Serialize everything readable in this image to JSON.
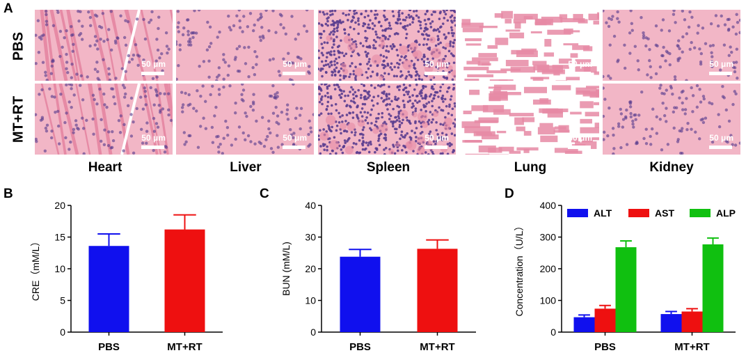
{
  "histology": {
    "panel_letter": "A",
    "rows": [
      "PBS",
      "MT+RT"
    ],
    "organs": [
      "Heart",
      "Liver",
      "Spleen",
      "Lung",
      "Kidney"
    ],
    "scale_bar": "50 μm",
    "stain_colors": {
      "background": "#f2b6c6",
      "tissue": "#e68aa5",
      "nuclei": "#5a3d8f",
      "blank": "#ffffff"
    }
  },
  "chart_data": [
    {
      "panel_letter": "B",
      "type": "bar",
      "categories": [
        "PBS",
        "MT+RT"
      ],
      "values": [
        13.6,
        16.2
      ],
      "errors": [
        1.9,
        2.3
      ],
      "colors": [
        "#1010ee",
        "#ee1010"
      ],
      "ylabel": "CRE（mM/L）",
      "xlabel": "",
      "ylim": [
        0,
        20
      ],
      "yticks": [
        0,
        5,
        10,
        15,
        20
      ],
      "grid": false
    },
    {
      "panel_letter": "C",
      "type": "bar",
      "categories": [
        "PBS",
        "MT+RT"
      ],
      "values": [
        23.8,
        26.3
      ],
      "errors": [
        2.3,
        2.8
      ],
      "colors": [
        "#1010ee",
        "#ee1010"
      ],
      "ylabel": "BUN (mM/L)",
      "xlabel": "",
      "ylim": [
        0,
        40
      ],
      "yticks": [
        0,
        10,
        20,
        30,
        40
      ],
      "grid": false
    },
    {
      "panel_letter": "D",
      "type": "bar",
      "categories": [
        "PBS",
        "MT+RT"
      ],
      "series": [
        {
          "name": "ALT",
          "values": [
            47,
            57
          ],
          "errors": [
            7,
            8
          ],
          "color": "#1010ee"
        },
        {
          "name": "AST",
          "values": [
            74,
            65
          ],
          "errors": [
            10,
            9
          ],
          "color": "#ee1010"
        },
        {
          "name": "ALP",
          "values": [
            268,
            277
          ],
          "errors": [
            20,
            20
          ],
          "color": "#10c010"
        }
      ],
      "ylabel": "Concentration（U/L）",
      "xlabel": "",
      "ylim": [
        0,
        400
      ],
      "yticks": [
        0,
        100,
        200,
        300,
        400
      ],
      "legend_placement": "top",
      "grid": false
    }
  ]
}
